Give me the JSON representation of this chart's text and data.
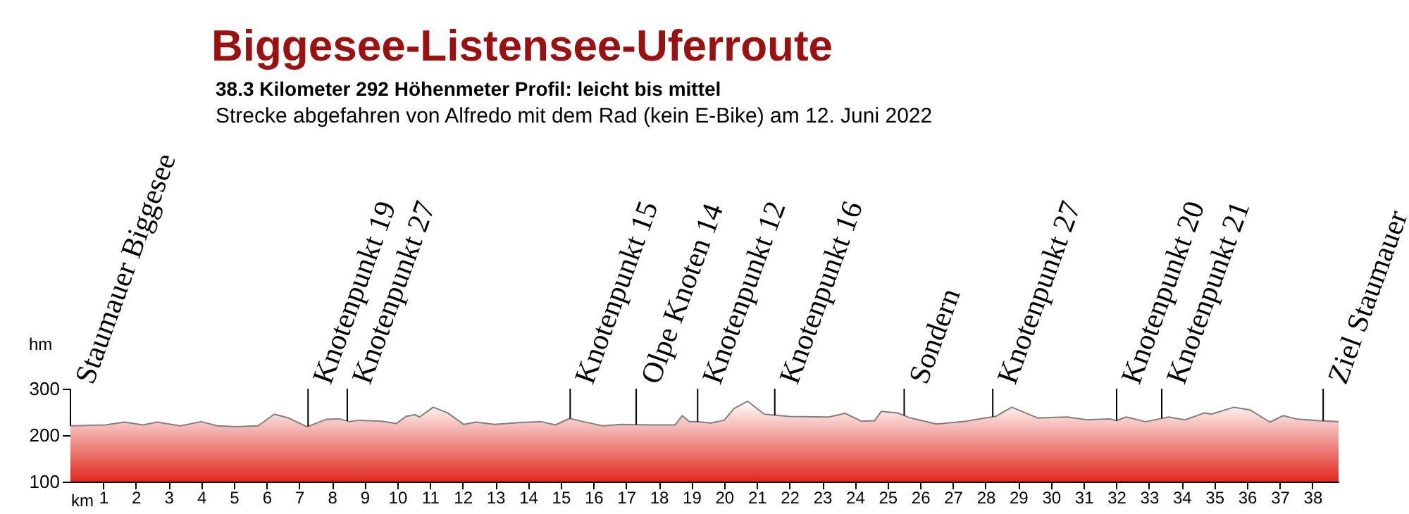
{
  "chart_data": {
    "type": "area",
    "title": "Biggesee-Listensee-Uferroute",
    "subtitle": "38.3 Kilometer  292 Höhenmeter  Profil: leicht bis mittel",
    "annotations": [
      "Strecke abgefahren von Alfredo mit dem Rad (kein E-Bike) am 12. Juni 2022"
    ],
    "xlabel": "km",
    "ylabel": "hm",
    "x": [
      0,
      1.07,
      1.65,
      2.22,
      2.65,
      3.37,
      4.0,
      4.5,
      5.09,
      5.74,
      6.24,
      6.67,
      7.24,
      7.82,
      8.24,
      8.53,
      8.82,
      9.54,
      9.97,
      10.26,
      10.54,
      10.68,
      11.1,
      11.54,
      12.04,
      12.4,
      12.98,
      13.7,
      14.4,
      14.84,
      15.27,
      15.7,
      16.28,
      16.85,
      17.71,
      18.5,
      18.72,
      18.93,
      19.15,
      19.58,
      20.0,
      20.3,
      20.72,
      21.23,
      22.0,
      23.2,
      23.7,
      24.2,
      24.6,
      24.81,
      25.3,
      25.7,
      26.5,
      27.4,
      28.0,
      28.3,
      28.8,
      29.6,
      30.5,
      31.1,
      31.8,
      32.0,
      32.3,
      32.9,
      33.6,
      34.1,
      34.7,
      34.9,
      35.6,
      36.1,
      36.7,
      37.1,
      37.5,
      38.2,
      38.8
    ],
    "series": [
      {
        "color": "#e0281c",
        "values": [
          220,
          222,
          228,
          222,
          228,
          220,
          229,
          220,
          218,
          220,
          245,
          237,
          218,
          234,
          235,
          229,
          232,
          230,
          225,
          240,
          244,
          239,
          260,
          248,
          223,
          228,
          223,
          227,
          229,
          222,
          236,
          229,
          220,
          223,
          222,
          222,
          242,
          229,
          229,
          226,
          232,
          257,
          273,
          245,
          240,
          239,
          247,
          230,
          231,
          251,
          248,
          237,
          224,
          230,
          237,
          240,
          260,
          237,
          239,
          233,
          235,
          231,
          239,
          229,
          239,
          233,
          248,
          245,
          260,
          254,
          228,
          242,
          235,
          231,
          229
        ]
      }
    ],
    "xlim": [
      0,
      38.8
    ],
    "xticks": [
      1,
      2,
      3,
      4,
      5,
      6,
      7,
      8,
      9,
      10,
      11,
      12,
      13,
      14,
      15,
      16,
      17,
      18,
      19,
      20,
      21,
      22,
      23,
      24,
      25,
      26,
      27,
      28,
      29,
      30,
      31,
      32,
      33,
      34,
      35,
      36,
      37,
      38
    ],
    "ylim": [
      100,
      300
    ],
    "yticks": [
      100,
      200,
      300
    ],
    "grid": false,
    "ref_lines": [
      {
        "axis": "x",
        "value": 0,
        "label": "Staumauer Biggesee"
      },
      {
        "axis": "x",
        "value": 7.27,
        "label": "Knotenpunkt 19"
      },
      {
        "axis": "x",
        "value": 8.47,
        "label": "Knotenpunkt 27"
      },
      {
        "axis": "x",
        "value": 15.29,
        "label": "Knotenpunkt 15"
      },
      {
        "axis": "x",
        "value": 17.31,
        "label": "Olpe Knoten 14"
      },
      {
        "axis": "x",
        "value": 19.19,
        "label": "Knotenpunkt 12"
      },
      {
        "axis": "x",
        "value": 21.55,
        "label": "Knotenpunkt 16"
      },
      {
        "axis": "x",
        "value": 25.51,
        "label": "Sondern"
      },
      {
        "axis": "x",
        "value": 28.22,
        "label": "Knotenpunkt 27"
      },
      {
        "axis": "x",
        "value": 32.01,
        "label": "Knotenpunkt 20"
      },
      {
        "axis": "x",
        "value": 33.39,
        "label": "Knotenpunkt 21"
      },
      {
        "axis": "x",
        "value": 38.33,
        "label": "Ziel Staumauer"
      }
    ]
  }
}
